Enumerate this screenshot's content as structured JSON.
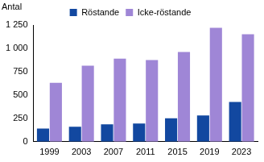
{
  "chart_data": {
    "type": "bar",
    "y_label": "Antal",
    "categories": [
      "1999",
      "2003",
      "2007",
      "2011",
      "2015",
      "2019",
      "2023"
    ],
    "series": [
      {
        "name": "Röstande",
        "color": "#1248a0",
        "values": [
          140,
          160,
          185,
          195,
          250,
          280,
          425
        ]
      },
      {
        "name": "Icke-röstande",
        "color": "#9f86d6",
        "values": [
          630,
          815,
          890,
          875,
          960,
          1220,
          1150
        ]
      }
    ],
    "ylim": [
      0,
      1250
    ],
    "yticks": [
      0,
      250,
      500,
      750,
      {
        "value": 1000,
        "label": "1 000"
      },
      {
        "value": 1250,
        "label": "1 250"
      }
    ],
    "grid": false,
    "legend": "top"
  }
}
